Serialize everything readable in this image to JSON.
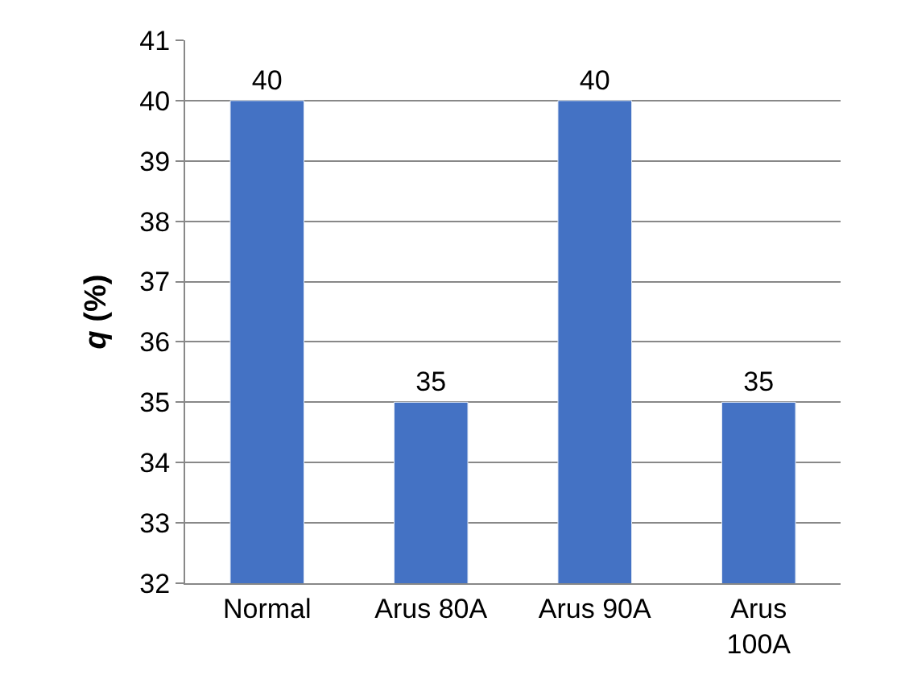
{
  "chart_data": {
    "type": "bar",
    "ylabel": "q (%)",
    "categories": [
      "Normal",
      "Arus 80A",
      "Arus 90A",
      "Arus 100A"
    ],
    "values": [
      40,
      35,
      40,
      35
    ],
    "color": "#4472c4",
    "ylim": [
      32,
      41
    ],
    "yticks": [
      32,
      33,
      34,
      35,
      36,
      37,
      38,
      39,
      40,
      41
    ],
    "grid": "y",
    "data_labels": true
  }
}
